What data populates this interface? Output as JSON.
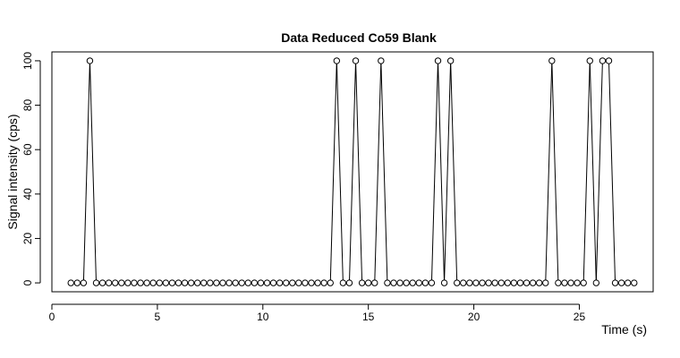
{
  "chart_data": {
    "type": "scatter",
    "title": "Data Reduced Co59 Blank",
    "xlabel": "Time (s)",
    "ylabel": "Signal intensity (cps)",
    "xlim": [
      0,
      28.5
    ],
    "ylim": [
      -4,
      104
    ],
    "x_ticks": [
      0,
      5,
      10,
      15,
      20,
      25
    ],
    "y_ticks": [
      0,
      20,
      40,
      60,
      80,
      100
    ],
    "grid": false,
    "series": [
      {
        "style": "line-and-open-circles",
        "x": [
          0.9,
          1.2,
          1.5,
          1.8,
          2.1,
          2.4,
          2.7,
          3.0,
          3.3,
          3.6,
          3.9,
          4.2,
          4.5,
          4.8,
          5.1,
          5.4,
          5.7,
          6.0,
          6.3,
          6.6,
          6.9,
          7.2,
          7.5,
          7.8,
          8.1,
          8.4,
          8.7,
          9.0,
          9.3,
          9.6,
          9.9,
          10.2,
          10.5,
          10.8,
          11.1,
          11.4,
          11.7,
          12.0,
          12.3,
          12.6,
          12.9,
          13.2,
          13.5,
          13.8,
          14.1,
          14.4,
          14.7,
          15.0,
          15.3,
          15.6,
          15.9,
          16.2,
          16.5,
          16.8,
          17.1,
          17.4,
          17.7,
          18.0,
          18.3,
          18.6,
          18.9,
          19.2,
          19.5,
          19.8,
          20.1,
          20.4,
          20.7,
          21.0,
          21.3,
          21.6,
          21.9,
          22.2,
          22.5,
          22.8,
          23.1,
          23.4,
          23.7,
          24.0,
          24.3,
          24.6,
          24.9,
          25.2,
          25.5,
          25.8,
          26.1,
          26.4,
          26.7,
          27.0,
          27.3,
          27.6
        ],
        "y": [
          0,
          0,
          0,
          100,
          0,
          0,
          0,
          0,
          0,
          0,
          0,
          0,
          0,
          0,
          0,
          0,
          0,
          0,
          0,
          0,
          0,
          0,
          0,
          0,
          0,
          0,
          0,
          0,
          0,
          0,
          0,
          0,
          0,
          0,
          0,
          0,
          0,
          0,
          0,
          0,
          0,
          0,
          100,
          0,
          0,
          100,
          0,
          0,
          0,
          100,
          0,
          0,
          0,
          0,
          0,
          0,
          0,
          0,
          100,
          0,
          100,
          0,
          0,
          0,
          0,
          0,
          0,
          0,
          0,
          0,
          0,
          0,
          0,
          0,
          0,
          0,
          100,
          0,
          0,
          0,
          0,
          0,
          100,
          0,
          100,
          100,
          0,
          0,
          0,
          0
        ]
      }
    ]
  }
}
